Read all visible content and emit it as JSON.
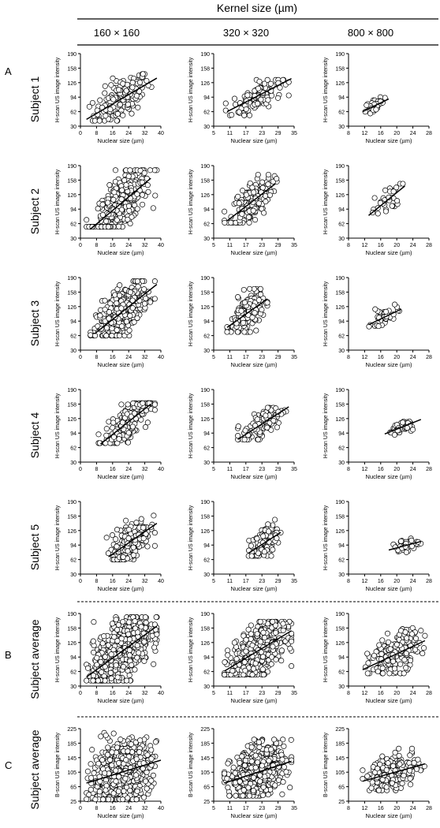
{
  "header": {
    "title": "Kernel size (µm)",
    "columns": [
      "160 × 160",
      "320 × 320",
      "800 × 800"
    ]
  },
  "panels": [
    "A",
    "B",
    "C"
  ],
  "rows": [
    "Subject 1",
    "Subject 2",
    "Subject 3",
    "Subject 4",
    "Subject 5",
    "Subject average",
    "Subject average"
  ],
  "colors": {
    "marker_fill": "#ffffff",
    "marker_stroke": "#000000",
    "line": "#000000"
  },
  "chart_data": [
    {
      "type": "scatter",
      "row": 0,
      "col": 0,
      "xlabel": "Nuclear size (µm)",
      "ylabel": "H-scan US image intensity",
      "xlim": [
        0,
        40
      ],
      "xticks": [
        0,
        8,
        16,
        24,
        32,
        40
      ],
      "ylim": [
        30,
        190
      ],
      "yticks": [
        30,
        62,
        94,
        126,
        158,
        190
      ],
      "x_range": [
        3,
        38
      ],
      "y_range": [
        42,
        145
      ],
      "fit": [
        [
          3,
          45
        ],
        [
          38,
          136
        ]
      ],
      "n": 140
    },
    {
      "type": "scatter",
      "row": 0,
      "col": 1,
      "xlabel": "Nuclear size (µm)",
      "ylabel": "H-scan US image intensity",
      "xlim": [
        5,
        35
      ],
      "xticks": [
        5,
        11,
        17,
        23,
        29,
        35
      ],
      "ylim": [
        30,
        190
      ],
      "yticks": [
        30,
        62,
        94,
        126,
        158,
        190
      ],
      "x_range": [
        9.5,
        33
      ],
      "y_range": [
        54,
        132
      ],
      "fit": [
        [
          10,
          62
        ],
        [
          34,
          135
        ]
      ],
      "n": 110
    },
    {
      "type": "scatter",
      "row": 0,
      "col": 2,
      "xlabel": "Nuclear size (µm)",
      "ylabel": "H-scan US image intensity",
      "xlim": [
        8,
        28
      ],
      "xticks": [
        8,
        12,
        16,
        20,
        24,
        28
      ],
      "ylim": [
        30,
        190
      ],
      "yticks": [
        30,
        62,
        94,
        126,
        158,
        190
      ],
      "x_range": [
        11.5,
        18
      ],
      "y_range": [
        58,
        94
      ],
      "fit": [
        [
          11.5,
          62
        ],
        [
          18,
          90
        ]
      ],
      "n": 30
    },
    {
      "type": "scatter",
      "row": 1,
      "col": 0,
      "xlabel": "Nuclear size (µm)",
      "ylabel": "H-scan US image intensity",
      "xlim": [
        0,
        40
      ],
      "xticks": [
        0,
        8,
        16,
        24,
        32,
        40
      ],
      "ylim": [
        30,
        190
      ],
      "yticks": [
        30,
        62,
        94,
        126,
        158,
        190
      ],
      "x_range": [
        3,
        38
      ],
      "y_range": [
        55,
        180
      ],
      "fit": [
        [
          5,
          50
        ],
        [
          35,
          162
        ]
      ],
      "n": 330
    },
    {
      "type": "scatter",
      "row": 1,
      "col": 1,
      "xlabel": "Nuclear size (µm)",
      "ylabel": "H-scan US image intensity",
      "xlim": [
        5,
        35
      ],
      "xticks": [
        5,
        11,
        17,
        23,
        29,
        35
      ],
      "ylim": [
        30,
        190
      ],
      "yticks": [
        30,
        62,
        94,
        126,
        158,
        190
      ],
      "x_range": [
        9,
        29
      ],
      "y_range": [
        64,
        170
      ],
      "fit": [
        [
          10,
          68
        ],
        [
          28,
          150
        ]
      ],
      "n": 170
    },
    {
      "type": "scatter",
      "row": 1,
      "col": 2,
      "xlabel": "Nuclear size (µm)",
      "ylabel": "H-scan US image intensity",
      "xlim": [
        8,
        28
      ],
      "xticks": [
        8,
        12,
        16,
        20,
        24,
        28
      ],
      "ylim": [
        30,
        190
      ],
      "yticks": [
        30,
        62,
        94,
        126,
        158,
        190
      ],
      "x_range": [
        13,
        22
      ],
      "y_range": [
        84,
        150
      ],
      "fit": [
        [
          13,
          80
        ],
        [
          22,
          145
        ]
      ],
      "n": 32
    },
    {
      "type": "scatter",
      "row": 2,
      "col": 0,
      "xlabel": "Nuclear size (µm)",
      "ylabel": "H-scan US image intensity",
      "xlim": [
        0,
        40
      ],
      "xticks": [
        0,
        8,
        16,
        24,
        32,
        40
      ],
      "ylim": [
        30,
        190
      ],
      "yticks": [
        30,
        62,
        94,
        126,
        158,
        190
      ],
      "x_range": [
        5,
        37
      ],
      "y_range": [
        62,
        182
      ],
      "fit": [
        [
          7,
          66
        ],
        [
          38,
          175
        ]
      ],
      "n": 330
    },
    {
      "type": "scatter",
      "row": 2,
      "col": 1,
      "xlabel": "Nuclear size (µm)",
      "ylabel": "H-scan US image intensity",
      "xlim": [
        5,
        35
      ],
      "xticks": [
        5,
        11,
        17,
        23,
        29,
        35
      ],
      "ylim": [
        30,
        190
      ],
      "yticks": [
        30,
        62,
        94,
        126,
        158,
        190
      ],
      "x_range": [
        10,
        25
      ],
      "y_range": [
        70,
        165
      ],
      "fit": [
        [
          10,
          80
        ],
        [
          25,
          143
        ]
      ],
      "n": 200
    },
    {
      "type": "scatter",
      "row": 2,
      "col": 2,
      "xlabel": "Nuclear size (µm)",
      "ylabel": "H-scan US image intensity",
      "xlim": [
        8,
        28
      ],
      "xticks": [
        8,
        12,
        16,
        20,
        24,
        28
      ],
      "ylim": [
        30,
        190
      ],
      "yticks": [
        30,
        62,
        94,
        126,
        158,
        190
      ],
      "x_range": [
        13,
        21
      ],
      "y_range": [
        82,
        132
      ],
      "fit": [
        [
          13,
          86
        ],
        [
          21,
          120
        ]
      ],
      "n": 38
    },
    {
      "type": "scatter",
      "row": 3,
      "col": 0,
      "xlabel": "Nuclear size (µm)",
      "ylabel": "H-scan US image intensity",
      "xlim": [
        0,
        40
      ],
      "xticks": [
        0,
        8,
        16,
        24,
        32,
        40
      ],
      "ylim": [
        30,
        190
      ],
      "yticks": [
        30,
        62,
        94,
        126,
        158,
        190
      ],
      "x_range": [
        9,
        37
      ],
      "y_range": [
        72,
        160
      ],
      "fit": [
        [
          10,
          70
        ],
        [
          35,
          158
        ]
      ],
      "n": 190
    },
    {
      "type": "scatter",
      "row": 3,
      "col": 1,
      "xlabel": "Nuclear size (µm)",
      "ylabel": "H-scan US image intensity",
      "xlim": [
        5,
        35
      ],
      "xticks": [
        5,
        11,
        17,
        23,
        29,
        35
      ],
      "ylim": [
        30,
        190
      ],
      "yticks": [
        30,
        62,
        94,
        126,
        158,
        190
      ],
      "x_range": [
        14,
        33
      ],
      "y_range": [
        80,
        150
      ],
      "fit": [
        [
          14,
          80
        ],
        [
          33,
          152
        ]
      ],
      "n": 120
    },
    {
      "type": "scatter",
      "row": 3,
      "col": 2,
      "xlabel": "Nuclear size (µm)",
      "ylabel": "H-scan US image intensity",
      "xlim": [
        8,
        28
      ],
      "xticks": [
        8,
        12,
        16,
        20,
        24,
        28
      ],
      "ylim": [
        30,
        190
      ],
      "yticks": [
        30,
        62,
        94,
        126,
        158,
        190
      ],
      "x_range": [
        17,
        26
      ],
      "y_range": [
        90,
        130
      ],
      "fit": [
        [
          17,
          92
        ],
        [
          26,
          124
        ]
      ],
      "n": 45
    },
    {
      "type": "scatter",
      "row": 4,
      "col": 0,
      "xlabel": "Nuclear size (µm)",
      "ylabel": "H-scan US image intensity",
      "xlim": [
        0,
        40
      ],
      "xticks": [
        0,
        8,
        16,
        24,
        32,
        40
      ],
      "ylim": [
        30,
        190
      ],
      "yticks": [
        30,
        62,
        94,
        126,
        158,
        190
      ],
      "x_range": [
        13,
        37
      ],
      "y_range": [
        62,
        160
      ],
      "fit": [
        [
          14,
          68
        ],
        [
          38,
          142
        ]
      ],
      "n": 210
    },
    {
      "type": "scatter",
      "row": 4,
      "col": 1,
      "xlabel": "Nuclear size (µm)",
      "ylabel": "H-scan US image intensity",
      "xlim": [
        5,
        35
      ],
      "xticks": [
        5,
        11,
        17,
        23,
        29,
        35
      ],
      "ylim": [
        30,
        190
      ],
      "yticks": [
        30,
        62,
        94,
        126,
        158,
        190
      ],
      "x_range": [
        18,
        30
      ],
      "y_range": [
        70,
        150
      ],
      "fit": [
        [
          18,
          76
        ],
        [
          30,
          122
        ]
      ],
      "n": 120
    },
    {
      "type": "scatter",
      "row": 4,
      "col": 2,
      "xlabel": "Nuclear size (µm)",
      "ylabel": "H-scan US image intensity",
      "xlim": [
        8,
        28
      ],
      "xticks": [
        8,
        12,
        16,
        20,
        24,
        28
      ],
      "ylim": [
        30,
        190
      ],
      "yticks": [
        30,
        62,
        94,
        126,
        158,
        190
      ],
      "x_range": [
        18,
        26
      ],
      "y_range": [
        78,
        112
      ],
      "fit": [
        [
          18,
          83
        ],
        [
          26,
          102
        ]
      ],
      "n": 40
    },
    {
      "type": "scatter",
      "row": 5,
      "col": 0,
      "xlabel": "Nuclear size (µm)",
      "ylabel": "H-scan US image intensity",
      "xlim": [
        0,
        40
      ],
      "xticks": [
        0,
        8,
        16,
        24,
        32,
        40
      ],
      "ylim": [
        30,
        190
      ],
      "yticks": [
        30,
        62,
        94,
        126,
        158,
        190
      ],
      "x_range": [
        3,
        38
      ],
      "y_range": [
        42,
        182
      ],
      "fit": [
        [
          3,
          50
        ],
        [
          38,
          162
        ]
      ],
      "n": 800
    },
    {
      "type": "scatter",
      "row": 5,
      "col": 1,
      "xlabel": "Nuclear size (µm)",
      "ylabel": "H-scan US image intensity",
      "xlim": [
        5,
        35
      ],
      "xticks": [
        5,
        11,
        17,
        23,
        29,
        35
      ],
      "ylim": [
        30,
        190
      ],
      "yticks": [
        30,
        62,
        94,
        126,
        158,
        190
      ],
      "x_range": [
        9,
        34
      ],
      "y_range": [
        55,
        172
      ],
      "fit": [
        [
          9,
          63
        ],
        [
          34,
          152
        ]
      ],
      "n": 550
    },
    {
      "type": "scatter",
      "row": 5,
      "col": 2,
      "xlabel": "Nuclear size (µm)",
      "ylabel": "H-scan US image intensity",
      "xlim": [
        8,
        28
      ],
      "xticks": [
        8,
        12,
        16,
        20,
        24,
        28
      ],
      "ylim": [
        30,
        190
      ],
      "yticks": [
        30,
        62,
        94,
        126,
        158,
        190
      ],
      "x_range": [
        11.5,
        27
      ],
      "y_range": [
        58,
        158
      ],
      "fit": [
        [
          11.5,
          66
        ],
        [
          27,
          130
        ]
      ],
      "n": 190
    },
    {
      "type": "scatter",
      "row": 6,
      "col": 0,
      "xlabel": "Nuclear size (µm)",
      "ylabel": "B-scan US image intensity",
      "xlim": [
        0,
        40
      ],
      "xticks": [
        0,
        8,
        16,
        24,
        32,
        40
      ],
      "ylim": [
        25,
        225
      ],
      "yticks": [
        25,
        65,
        105,
        145,
        185,
        225
      ],
      "x_range": [
        3,
        38
      ],
      "y_range": [
        30,
        215
      ],
      "fit": [
        [
          3,
          75
        ],
        [
          40,
          138
        ]
      ],
      "n": 800
    },
    {
      "type": "scatter",
      "row": 6,
      "col": 1,
      "xlabel": "Nuclear size (µm)",
      "ylabel": "B-scan US image intensity",
      "xlim": [
        5,
        35
      ],
      "xticks": [
        5,
        11,
        17,
        23,
        29,
        35
      ],
      "ylim": [
        25,
        225
      ],
      "yticks": [
        25,
        65,
        105,
        145,
        185,
        225
      ],
      "x_range": [
        9,
        34
      ],
      "y_range": [
        40,
        195
      ],
      "fit": [
        [
          9,
          75
        ],
        [
          34,
          135
        ]
      ],
      "n": 550
    },
    {
      "type": "scatter",
      "row": 6,
      "col": 2,
      "xlabel": "Nuclear size (µm)",
      "ylabel": "B-scan US image intensity",
      "xlim": [
        8,
        28
      ],
      "xticks": [
        8,
        12,
        16,
        20,
        24,
        28
      ],
      "ylim": [
        25,
        225
      ],
      "yticks": [
        25,
        65,
        105,
        145,
        185,
        225
      ],
      "x_range": [
        11.5,
        27
      ],
      "y_range": [
        55,
        170
      ],
      "fit": [
        [
          11.5,
          80
        ],
        [
          27,
          128
        ]
      ],
      "n": 190
    }
  ]
}
